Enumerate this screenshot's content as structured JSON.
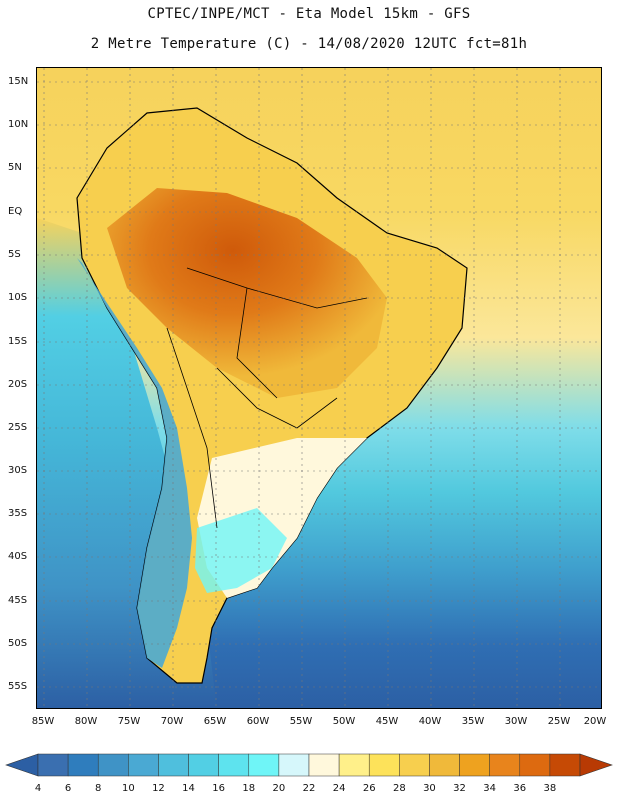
{
  "title_line1": "CPTEC/INPE/MCT -  Eta Model 15km - GFS",
  "title_line2": "2 Metre Temperature (C) - 14/08/2020 12UTC fct=81h",
  "latitude_labels": [
    "15N",
    "10N",
    "5N",
    "EQ",
    "5S",
    "10S",
    "15S",
    "20S",
    "25S",
    "30S",
    "35S",
    "40S",
    "45S",
    "50S",
    "55S"
  ],
  "longitude_labels": [
    "85W",
    "80W",
    "75W",
    "70W",
    "65W",
    "60W",
    "55W",
    "50W",
    "45W",
    "40W",
    "35W",
    "30W",
    "25W",
    "20W"
  ],
  "colorbar": {
    "labels": [
      "4",
      "6",
      "8",
      "10",
      "12",
      "14",
      "16",
      "18",
      "20",
      "22",
      "24",
      "26",
      "28",
      "30",
      "32",
      "34",
      "36",
      "38"
    ],
    "colors": [
      "#3a6fb0",
      "#2f7dbd",
      "#3f93c6",
      "#4aa9d3",
      "#4fbfdd",
      "#52cfe4",
      "#5ee3ee",
      "#6ff5f7",
      "#d6f7fb",
      "#fff8dc",
      "#fff08a",
      "#fde25a",
      "#f7cf4e",
      "#f0b93a",
      "#eea21f",
      "#e8841c",
      "#dd6a10",
      "#c64a05"
    ],
    "below_color": "#2c5fa4",
    "above_color": "#b83a04"
  }
}
